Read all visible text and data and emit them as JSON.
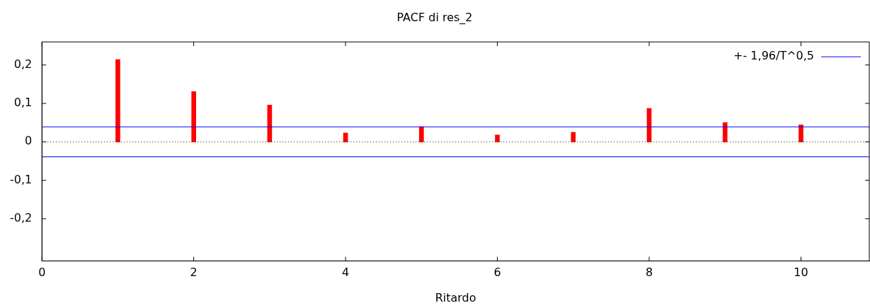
{
  "chart_data": {
    "type": "bar",
    "title": "PACF di res_2",
    "xlabel": "Ritardo",
    "x": [
      1,
      2,
      3,
      4,
      5,
      6,
      7,
      8,
      9,
      10
    ],
    "values": [
      0.214,
      0.131,
      0.096,
      0.023,
      0.039,
      0.018,
      0.025,
      0.087,
      0.05,
      0.044
    ],
    "color": "#ff0000",
    "xlim": [
      0,
      10.9
    ],
    "xticks": [
      0,
      2,
      4,
      6,
      8,
      10
    ],
    "ylim": [
      -0.31,
      0.26
    ],
    "yticks": [
      {
        "value": -0.2,
        "label": "-0,2"
      },
      {
        "value": -0.1,
        "label": "-0,1"
      },
      0,
      {
        "value": 0.1,
        "label": "0,1"
      },
      {
        "value": 0.2,
        "label": "0,2"
      }
    ],
    "ref_lines": [
      {
        "axis": "y",
        "value": 0,
        "color": "#000000",
        "line_style": "dotted"
      },
      {
        "axis": "y",
        "value": 0.039,
        "label": "+- 1,96/T^0,5",
        "color": "#0000ff"
      },
      {
        "axis": "y",
        "value": -0.039,
        "color": "#0000ff"
      }
    ],
    "legend": "top right",
    "grid": false
  }
}
